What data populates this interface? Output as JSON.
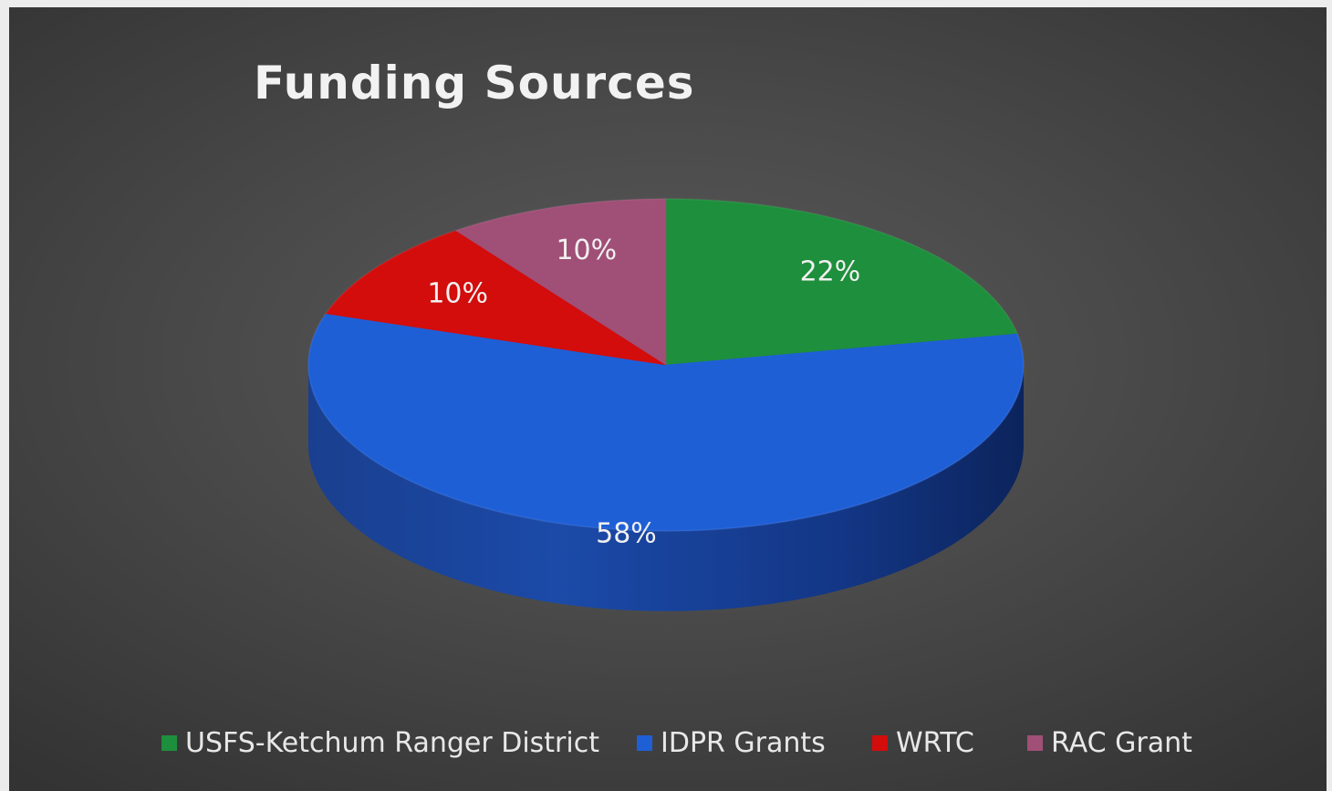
{
  "chart_data": {
    "type": "pie",
    "title": "Funding Sources",
    "slices": [
      {
        "label": "USFS-Ketchum Ranger District",
        "value": 22,
        "display": "22%",
        "color": "#1e8f3c"
      },
      {
        "label": "IDPR Grants",
        "value": 58,
        "display": "58%",
        "color": "#1f5fd6"
      },
      {
        "label": "WRTC",
        "value": 10,
        "display": "10%",
        "color": "#d30c0c"
      },
      {
        "label": "RAC Grant",
        "value": 10,
        "display": "10%",
        "color": "#a04f77"
      }
    ],
    "legend_position": "bottom",
    "three_d": true
  }
}
